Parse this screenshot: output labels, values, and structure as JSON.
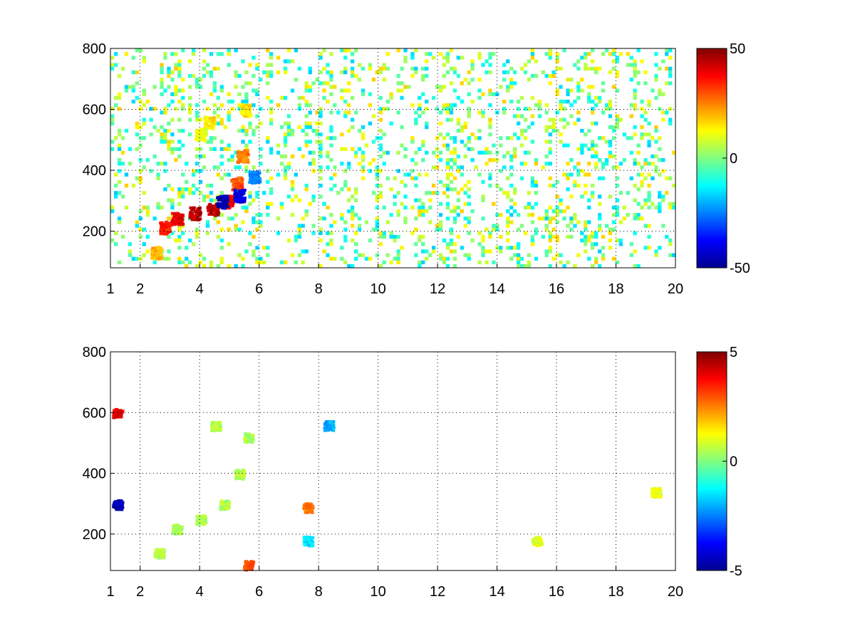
{
  "chart_data": [
    {
      "type": "heatmap",
      "xticks": [
        "1",
        "2",
        "4",
        "6",
        "8",
        "10",
        "12",
        "14",
        "16",
        "18",
        "20"
      ],
      "xtick_values": [
        1,
        2,
        4,
        6,
        8,
        10,
        12,
        14,
        16,
        18,
        20
      ],
      "yticks": [
        "200",
        "400",
        "600",
        "800"
      ],
      "ytick_values": [
        200,
        400,
        600,
        800
      ],
      "xlim": [
        1,
        20
      ],
      "ylim": [
        80,
        800
      ],
      "grid": true,
      "colormap": "jet",
      "clim": [
        -50,
        50
      ],
      "colorbar_ticks": [
        "50",
        "0",
        "-50"
      ],
      "colorbar_tick_values": [
        50,
        0,
        -50
      ],
      "features": [
        {
          "x": 2.5,
          "y": 130,
          "value": 20
        },
        {
          "x": 2.8,
          "y": 215,
          "value": 35
        },
        {
          "x": 3.2,
          "y": 245,
          "value": 40
        },
        {
          "x": 3.8,
          "y": 262,
          "value": 45
        },
        {
          "x": 4.4,
          "y": 275,
          "value": 45
        },
        {
          "x": 4.9,
          "y": 300,
          "value": 40
        },
        {
          "x": 5.2,
          "y": 360,
          "value": 30
        },
        {
          "x": 5.4,
          "y": 450,
          "value": 25
        },
        {
          "x": 5.5,
          "y": 600,
          "value": 15
        },
        {
          "x": 4.7,
          "y": 300,
          "value": -45
        },
        {
          "x": 5.3,
          "y": 320,
          "value": -40
        },
        {
          "x": 5.8,
          "y": 380,
          "value": -25
        },
        {
          "x": 4.3,
          "y": 560,
          "value": 15
        },
        {
          "x": 4.0,
          "y": 520,
          "value": 10
        }
      ]
    },
    {
      "type": "heatmap",
      "xticks": [
        "1",
        "2",
        "4",
        "6",
        "8",
        "10",
        "12",
        "14",
        "16",
        "18",
        "20"
      ],
      "xtick_values": [
        1,
        2,
        4,
        6,
        8,
        10,
        12,
        14,
        16,
        18,
        20
      ],
      "yticks": [
        "200",
        "400",
        "600",
        "800"
      ],
      "ytick_values": [
        200,
        400,
        600,
        800
      ],
      "xlim": [
        1,
        20
      ],
      "ylim": [
        80,
        800
      ],
      "grid": true,
      "colormap": "jet",
      "clim": [
        -5,
        5
      ],
      "colorbar_ticks": [
        "5",
        "0",
        "-5"
      ],
      "colorbar_tick_values": [
        5,
        0,
        -5
      ],
      "features": [
        {
          "x": 2.6,
          "y": 140,
          "value": 0.5
        },
        {
          "x": 3.2,
          "y": 220,
          "value": 0.5
        },
        {
          "x": 4.0,
          "y": 250,
          "value": 0.5
        },
        {
          "x": 4.8,
          "y": 300,
          "value": 0.5
        },
        {
          "x": 5.3,
          "y": 400,
          "value": 0.5
        },
        {
          "x": 5.6,
          "y": 520,
          "value": 0.5
        },
        {
          "x": 4.5,
          "y": 560,
          "value": 0.5
        },
        {
          "x": 7.6,
          "y": 290,
          "value": 2.5
        },
        {
          "x": 7.6,
          "y": 180,
          "value": -1.5
        },
        {
          "x": 8.3,
          "y": 560,
          "value": -2
        },
        {
          "x": 1.2,
          "y": 300,
          "value": -4.5
        },
        {
          "x": 1.2,
          "y": 600,
          "value": 4
        },
        {
          "x": 5.6,
          "y": 100,
          "value": 3
        },
        {
          "x": 19.3,
          "y": 340,
          "value": 1
        },
        {
          "x": 15.3,
          "y": 180,
          "value": 1
        }
      ]
    }
  ]
}
